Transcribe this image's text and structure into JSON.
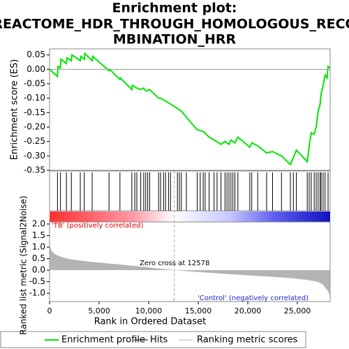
{
  "chart_data": [
    {
      "type": "line",
      "title": [
        "Enrichment plot:",
        "REACTOME_HDR_THROUGH_HOMOLOGOUS_RECO",
        "MBINATION_HRR"
      ],
      "y_label": "Enrichment score (ES)",
      "xlim": [
        0,
        28310
      ],
      "ylim": [
        -0.35,
        0.071
      ],
      "yticks": [
        0.05,
        {
          "value": 0,
          "label": "0.00"
        },
        -0.05,
        {
          "value": -0.1,
          "label": "-0.10"
        },
        -0.15,
        {
          "value": -0.2,
          "label": "-0.20"
        },
        -0.25,
        {
          "value": -0.3,
          "label": "-0.30"
        },
        -0.35
      ],
      "series": [
        {
          "name": "Enrichment profile",
          "color": "#00e600",
          "x": [
            0,
            800,
            850,
            1100,
            1150,
            1700,
            1750,
            2200,
            2250,
            3100,
            3150,
            3500,
            3550,
            4300,
            4350,
            6000,
            6050,
            7100,
            7150,
            8300,
            8350,
            8800,
            9200,
            9500,
            9700,
            10100,
            11000,
            11200,
            12200,
            13300,
            14900,
            15500,
            16100,
            16600,
            17300,
            17700,
            18100,
            18300,
            18700,
            19000,
            20200,
            20400,
            21000,
            21900,
            22500,
            23400,
            24300,
            24600,
            24900,
            26000,
            26200,
            26400,
            26700,
            26900,
            27100,
            27300,
            27400,
            27600,
            27800,
            28000,
            28100,
            28300
          ],
          "values": [
            0,
            -0.025,
            0.01,
            0.005,
            0.035,
            0.02,
            0.04,
            0.03,
            0.05,
            0.03,
            0.045,
            0.035,
            0.055,
            0.03,
            0.045,
            -0.005,
            0,
            -0.035,
            -0.03,
            -0.07,
            -0.055,
            -0.065,
            -0.07,
            -0.065,
            -0.075,
            -0.07,
            -0.1,
            -0.1,
            -0.12,
            -0.145,
            -0.21,
            -0.215,
            -0.235,
            -0.245,
            -0.26,
            -0.25,
            -0.26,
            -0.245,
            -0.255,
            -0.235,
            -0.27,
            -0.255,
            -0.265,
            -0.29,
            -0.285,
            -0.3,
            -0.33,
            -0.305,
            -0.28,
            -0.32,
            -0.265,
            -0.22,
            -0.225,
            -0.2,
            -0.145,
            -0.12,
            -0.085,
            -0.055,
            -0.02,
            -0.03,
            0.01,
            0.005
          ]
        }
      ]
    },
    {
      "type": "rug",
      "xlim": [
        0,
        28310
      ],
      "series": [
        {
          "name": "Hits",
          "color": "#000000",
          "x": [
            800,
            1100,
            1700,
            2200,
            3100,
            3500,
            4300,
            6000,
            7100,
            8300,
            8600,
            8800,
            9200,
            9500,
            9700,
            9900,
            10100,
            11000,
            11200,
            11500,
            11700,
            12000,
            12200,
            12900,
            13100,
            13300,
            13800,
            14900,
            15200,
            15500,
            15700,
            16100,
            16600,
            16900,
            17300,
            17700,
            17900,
            18100,
            18300,
            18500,
            18700,
            19000,
            20200,
            20400,
            21000,
            21900,
            22500,
            23400,
            24300,
            24600,
            24900,
            26000,
            26200,
            26400,
            26700,
            26900,
            27100,
            27300,
            27400,
            27600,
            27800,
            28100
          ]
        }
      ]
    },
    {
      "type": "area",
      "y_label": "Ranked list metric (Signal2Noise)",
      "x_label": "Rank in Ordered Dataset",
      "xlim": [
        0,
        28310
      ],
      "ylim": [
        -1.36,
        2.09
      ],
      "xticks": [
        0,
        {
          "value": 5000,
          "label": "5,000"
        },
        {
          "value": 10000,
          "label": "10,000"
        },
        {
          "value": 15000,
          "label": "15,000"
        },
        {
          "value": 20000,
          "label": "20,000"
        },
        {
          "value": 25000,
          "label": "25,000"
        }
      ],
      "yticks": [
        {
          "value": 2,
          "label": "2.0"
        },
        1.5,
        {
          "value": 1,
          "label": "1.0"
        },
        0.5,
        {
          "value": 0,
          "label": "0.0"
        },
        -0.5,
        {
          "value": -1,
          "label": "-1.0"
        }
      ],
      "zero_cross": 12578,
      "annotations": [
        "'TB' (positively correlated)",
        "Zero cross at 12578",
        "'Control' (negatively correlated)"
      ],
      "series": [
        {
          "name": "Ranking metric scores",
          "color": "#b4b4b4",
          "x": [
            0,
            200,
            500,
            1000,
            2000,
            4000,
            7000,
            10000,
            12578,
            15000,
            18000,
            21000,
            24000,
            26000,
            27000,
            27500,
            28000,
            28200,
            28300
          ],
          "values": [
            1.1,
            0.85,
            0.7,
            0.6,
            0.48,
            0.37,
            0.25,
            0.12,
            0,
            -0.08,
            -0.17,
            -0.25,
            -0.33,
            -0.42,
            -0.5,
            -0.6,
            -0.85,
            -1.0,
            -1.3
          ]
        }
      ]
    }
  ]
}
